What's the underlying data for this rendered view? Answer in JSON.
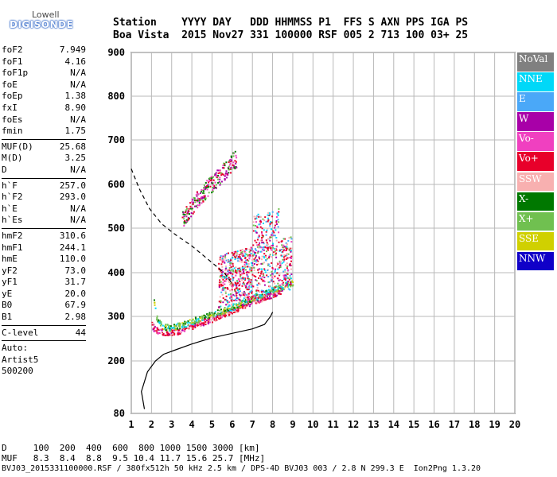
{
  "logo": {
    "top": "Lowell",
    "bottom": "DIGISONDE"
  },
  "header": {
    "row1": "Station    YYYY DAY   DDD HHMMSS P1  FFS S AXN PPS IGA PS",
    "row2": "Boa Vista  2015 Nov27 331 100000 RSF 005 2 713 100 03+ 25"
  },
  "params": [
    {
      "label": "foF2",
      "value": "7.949"
    },
    {
      "label": "foF1",
      "value": "4.16"
    },
    {
      "label": "foF1p",
      "value": "N/A"
    },
    {
      "label": "foE",
      "value": "N/A"
    },
    {
      "label": "foEp",
      "value": "1.38"
    },
    {
      "label": "fxI",
      "value": "8.90"
    },
    {
      "label": "foEs",
      "value": "N/A"
    },
    {
      "label": "fmin",
      "value": "1.75"
    },
    {
      "sep": true
    },
    {
      "label": "MUF(D)",
      "value": "25.68"
    },
    {
      "label": "M(D)",
      "value": "3.25"
    },
    {
      "label": "D",
      "value": "N/A"
    },
    {
      "sep": true
    },
    {
      "label": "h`F",
      "value": "257.0"
    },
    {
      "label": "h`F2",
      "value": "293.0"
    },
    {
      "label": "h`E",
      "value": "N/A"
    },
    {
      "label": "h`Es",
      "value": "N/A"
    },
    {
      "sep": true
    },
    {
      "label": "hmF2",
      "value": "310.6"
    },
    {
      "label": "hmF1",
      "value": "244.1"
    },
    {
      "label": "hmE",
      "value": "110.0"
    },
    {
      "label": "yF2",
      "value": "73.0"
    },
    {
      "label": "yF1",
      "value": "31.7"
    },
    {
      "label": "yE",
      "value": "20.0"
    },
    {
      "label": "B0",
      "value": "67.9"
    },
    {
      "label": "B1",
      "value": "2.98"
    },
    {
      "sep": true
    },
    {
      "label": "C-level",
      "value": "44"
    },
    {
      "sep": true
    },
    {
      "label": "Auto:",
      "value": ""
    },
    {
      "label": "Artist5",
      "value": ""
    },
    {
      "label": "500200",
      "value": ""
    }
  ],
  "legend": [
    {
      "label": "NoVal",
      "color": "#808080"
    },
    {
      "label": "NNE",
      "color": "#00d8f8"
    },
    {
      "label": "E",
      "color": "#4aa8f8"
    },
    {
      "label": "W",
      "color": "#a800a8"
    },
    {
      "label": "Vo-",
      "color": "#f040c0"
    },
    {
      "label": "Vo+",
      "color": "#e8002a"
    },
    {
      "label": "SSW",
      "color": "#f8b0b0"
    },
    {
      "label": "X-",
      "color": "#007800"
    },
    {
      "label": "X+",
      "color": "#70c050"
    },
    {
      "label": "SSE",
      "color": "#d0d000"
    },
    {
      "label": "NNW",
      "color": "#1000c8"
    }
  ],
  "bottom": {
    "line1": "D     100  200  400  600  800 1000 1500 3000 [km]",
    "line2": "MUF   8.3  8.4  8.8  9.5 10.4 11.7 15.6 25.7 [MHz]",
    "line3": "BVJ03_2015331100000.RSF / 380fx512h 50 kHz 2.5 km / DPS-4D BVJ03 003 / 2.8 N 299.3 E  Ion2Png 1.3.20"
  },
  "chart_data": {
    "type": "scatter",
    "title": "",
    "xlabel": "",
    "ylabel": "",
    "xlim": [
      1,
      20
    ],
    "ylim": [
      80,
      900
    ],
    "xticks": [
      "1",
      "2",
      "3",
      "4",
      "5",
      "6",
      "7",
      "8",
      "9",
      "10",
      "11",
      "12",
      "13",
      "14",
      "15",
      "16",
      "17",
      "18",
      "19",
      "20"
    ],
    "yticks": [
      "80",
      "200",
      "300",
      "400",
      "500",
      "600",
      "700",
      "800",
      "900"
    ],
    "grid": true,
    "legend_position": "right",
    "series": [
      {
        "kind": "trace_o",
        "x": [
          2.0,
          2.1,
          2.3,
          2.5,
          2.8,
          3.0,
          3.3,
          3.6,
          4.0,
          4.4,
          4.8,
          5.2,
          5.6,
          6.0,
          6.4,
          6.8,
          7.2,
          7.6,
          8.0,
          8.4
        ],
        "y": [
          282,
          274,
          268,
          266,
          265,
          266,
          268,
          272,
          280,
          286,
          292,
          300,
          308,
          315,
          322,
          330,
          338,
          345,
          352,
          360
        ]
      },
      {
        "kind": "trace_x",
        "x": [
          2.1,
          2.2,
          2.4,
          2.6,
          2.8,
          3.1,
          3.5,
          4.0,
          4.5,
          5.0,
          5.5,
          6.0,
          6.5,
          7.0,
          7.5,
          8.0,
          8.5,
          9.0
        ],
        "y": [
          340,
          300,
          285,
          278,
          276,
          278,
          282,
          290,
          298,
          306,
          314,
          322,
          332,
          342,
          352,
          362,
          370,
          378
        ]
      },
      {
        "kind": "multihop",
        "x": [
          3.5,
          3.8,
          4.1,
          4.4,
          4.7,
          5.0,
          5.3,
          5.6,
          5.9,
          6.2
        ],
        "y": [
          520,
          540,
          560,
          575,
          590,
          605,
          618,
          632,
          648,
          660
        ]
      },
      {
        "kind": "f2_cloud",
        "x": [
          5.5,
          6.0,
          6.5,
          7.0,
          7.5,
          8.0,
          8.5
        ],
        "y": [
          330,
          345,
          360,
          375,
          390,
          400,
          390
        ]
      },
      {
        "kind": "profile",
        "x": [
          1.65,
          1.5,
          1.8,
          2.2,
          2.6,
          3.2,
          4.0,
          5.0,
          6.0,
          7.0,
          7.6,
          7.9,
          8.0
        ],
        "y": [
          90,
          130,
          175,
          200,
          215,
          225,
          238,
          252,
          262,
          272,
          282,
          300,
          310
        ]
      },
      {
        "kind": "muf_curve",
        "x": [
          1.0,
          1.4,
          1.9,
          2.5,
          3.2,
          4.0,
          4.8,
          5.6,
          6.0
        ],
        "y": [
          635,
          590,
          545,
          510,
          485,
          460,
          430,
          400,
          375
        ]
      }
    ]
  }
}
